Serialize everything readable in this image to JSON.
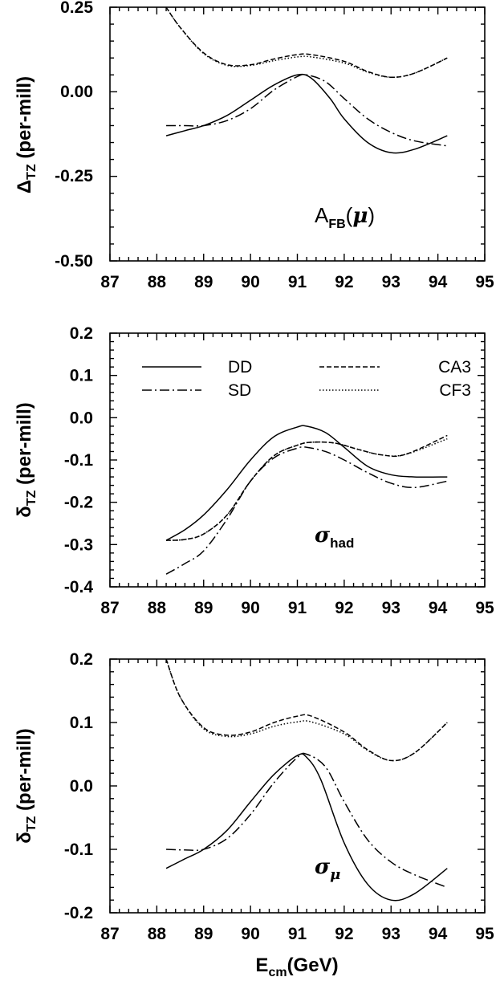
{
  "chart_data": [
    {
      "type": "line",
      "xlim": [
        87,
        95
      ],
      "ylim": [
        -0.5,
        0.25
      ],
      "xticks": [
        "87",
        "88",
        "89",
        "90",
        "91",
        "92",
        "93",
        "94",
        "95"
      ],
      "yticks": [
        "0.25",
        "0.00",
        "-0.25",
        "-0.50"
      ],
      "ylabel": {
        "symbol": "Δ",
        "sub": "TZ",
        "rest": "(per-mill)"
      },
      "annotation": {
        "base": "A",
        "sub": "FB",
        "open": "(",
        "symbol": "μ",
        "close": ")"
      },
      "series": [
        {
          "name": "DD",
          "style": "solid",
          "x": [
            88.2,
            88.6,
            89.0,
            89.5,
            90.0,
            90.5,
            91.0,
            91.3,
            91.7,
            92.0,
            92.5,
            93.0,
            93.5,
            94.2
          ],
          "y": [
            -0.13,
            -0.115,
            -0.1,
            -0.07,
            -0.025,
            0.02,
            0.05,
            0.04,
            -0.02,
            -0.08,
            -0.15,
            -0.18,
            -0.17,
            -0.13
          ]
        },
        {
          "name": "SD",
          "style": "dashdot",
          "x": [
            88.2,
            88.6,
            89.0,
            89.5,
            90.0,
            90.5,
            91.0,
            91.2,
            91.6,
            92.0,
            92.5,
            93.0,
            93.5,
            94.2
          ],
          "y": [
            -0.1,
            -0.1,
            -0.1,
            -0.085,
            -0.05,
            0.005,
            0.045,
            0.05,
            0.03,
            -0.02,
            -0.08,
            -0.12,
            -0.145,
            -0.16
          ]
        },
        {
          "name": "CA3",
          "style": "dashed",
          "x": [
            88.2,
            88.5,
            89.0,
            89.5,
            90.0,
            90.5,
            91.0,
            91.3,
            92.0,
            92.5,
            93.0,
            93.5,
            94.2
          ],
          "y": [
            0.25,
            0.19,
            0.115,
            0.08,
            0.08,
            0.097,
            0.11,
            0.11,
            0.09,
            0.06,
            0.043,
            0.055,
            0.1
          ]
        },
        {
          "name": "CF3",
          "style": "dotted",
          "x": [
            88.2,
            88.5,
            89.0,
            89.5,
            90.0,
            90.5,
            91.0,
            91.3,
            92.0,
            92.5,
            93.0,
            93.5,
            94.2
          ],
          "y": [
            0.25,
            0.19,
            0.113,
            0.078,
            0.078,
            0.092,
            0.103,
            0.103,
            0.085,
            0.058,
            0.043,
            0.055,
            0.1
          ]
        }
      ]
    },
    {
      "type": "line",
      "xlim": [
        87,
        95
      ],
      "ylim": [
        -0.4,
        0.2
      ],
      "xticks": [
        "87",
        "88",
        "89",
        "90",
        "91",
        "92",
        "93",
        "94",
        "95"
      ],
      "yticks": [
        "0.2",
        "0.1",
        "0.0",
        "-0.1",
        "-0.2",
        "-0.3",
        "-0.4"
      ],
      "ylabel": {
        "symbol": "δ",
        "sub": "TZ",
        "rest": "(per-mill)"
      },
      "annotation": {
        "symbol": "σ",
        "sub": "had"
      },
      "legend": {
        "placement": "top",
        "entries": [
          {
            "label": "DD",
            "style": "solid"
          },
          {
            "label": "SD",
            "style": "dashdot"
          },
          {
            "label": "CA3",
            "style": "dashed"
          },
          {
            "label": "CF3",
            "style": "dotted"
          }
        ]
      },
      "series": [
        {
          "name": "DD",
          "style": "solid",
          "x": [
            88.2,
            88.6,
            89.0,
            89.5,
            90.0,
            90.5,
            91.0,
            91.2,
            91.6,
            92.0,
            92.5,
            93.0,
            93.5,
            94.2
          ],
          "y": [
            -0.29,
            -0.265,
            -0.23,
            -0.17,
            -0.1,
            -0.045,
            -0.022,
            -0.02,
            -0.035,
            -0.07,
            -0.115,
            -0.135,
            -0.14,
            -0.14
          ]
        },
        {
          "name": "SD",
          "style": "dashdot",
          "x": [
            88.2,
            88.6,
            89.0,
            89.5,
            90.0,
            90.5,
            91.0,
            91.2,
            91.6,
            92.0,
            92.5,
            93.0,
            93.5,
            94.2
          ],
          "y": [
            -0.37,
            -0.345,
            -0.315,
            -0.24,
            -0.15,
            -0.095,
            -0.072,
            -0.07,
            -0.08,
            -0.1,
            -0.13,
            -0.155,
            -0.165,
            -0.15
          ]
        },
        {
          "name": "CA3",
          "style": "dashed",
          "x": [
            88.2,
            88.6,
            89.0,
            89.5,
            90.0,
            90.5,
            91.0,
            91.3,
            91.8,
            92.3,
            92.8,
            93.3,
            94.2
          ],
          "y": [
            -0.29,
            -0.288,
            -0.275,
            -0.23,
            -0.15,
            -0.09,
            -0.065,
            -0.058,
            -0.06,
            -0.075,
            -0.088,
            -0.087,
            -0.042
          ]
        },
        {
          "name": "CF3",
          "style": "dotted",
          "x": [
            88.2,
            88.6,
            89.0,
            89.5,
            90.0,
            90.5,
            91.0,
            91.3,
            91.8,
            92.3,
            92.8,
            93.3,
            94.2
          ],
          "y": [
            -0.29,
            -0.288,
            -0.275,
            -0.23,
            -0.15,
            -0.09,
            -0.065,
            -0.058,
            -0.06,
            -0.075,
            -0.088,
            -0.087,
            -0.05
          ]
        }
      ]
    },
    {
      "type": "line",
      "xlim": [
        87,
        95
      ],
      "ylim": [
        -0.2,
        0.2
      ],
      "xticks": [
        "87",
        "88",
        "89",
        "90",
        "91",
        "92",
        "93",
        "94",
        "95"
      ],
      "yticks": [
        "0.2",
        "0.1",
        "0.0",
        "-0.1",
        "-0.2"
      ],
      "ylabel": {
        "symbol": "δ",
        "sub": "TZ",
        "rest": "(per-mill)"
      },
      "xlabel": {
        "base": "E",
        "sub": "cm",
        "rest": "(GeV)"
      },
      "annotation": {
        "symbol": "σ",
        "sub": "μ"
      },
      "series": [
        {
          "name": "DD",
          "style": "solid",
          "x": [
            88.2,
            88.6,
            89.0,
            89.5,
            90.0,
            90.5,
            91.0,
            91.2,
            91.5,
            92.0,
            92.5,
            93.0,
            93.5,
            94.2
          ],
          "y": [
            -0.13,
            -0.115,
            -0.1,
            -0.07,
            -0.025,
            0.018,
            0.048,
            0.045,
            0.01,
            -0.09,
            -0.155,
            -0.18,
            -0.17,
            -0.13
          ]
        },
        {
          "name": "SD",
          "style": "dashdot",
          "x": [
            88.2,
            88.6,
            89.0,
            89.5,
            90.0,
            90.5,
            91.0,
            91.2,
            91.6,
            92.0,
            92.5,
            93.0,
            93.5,
            94.2
          ],
          "y": [
            -0.1,
            -0.101,
            -0.1,
            -0.083,
            -0.045,
            0.005,
            0.045,
            0.05,
            0.03,
            -0.025,
            -0.085,
            -0.12,
            -0.14,
            -0.16
          ]
        },
        {
          "name": "CA3",
          "style": "dashed",
          "x": [
            88.2,
            88.5,
            89.0,
            89.5,
            90.0,
            90.5,
            91.0,
            91.3,
            92.0,
            92.5,
            93.0,
            93.5,
            94.2
          ],
          "y": [
            0.2,
            0.14,
            0.092,
            0.08,
            0.085,
            0.1,
            0.11,
            0.11,
            0.085,
            0.057,
            0.04,
            0.052,
            0.1
          ]
        },
        {
          "name": "CF3",
          "style": "dotted",
          "x": [
            88.2,
            88.5,
            89.0,
            89.5,
            90.0,
            90.5,
            91.0,
            91.3,
            92.0,
            92.5,
            93.0,
            93.5,
            94.2
          ],
          "y": [
            0.2,
            0.14,
            0.09,
            0.078,
            0.082,
            0.094,
            0.101,
            0.101,
            0.082,
            0.056,
            0.04,
            0.052,
            0.1
          ]
        }
      ]
    }
  ]
}
